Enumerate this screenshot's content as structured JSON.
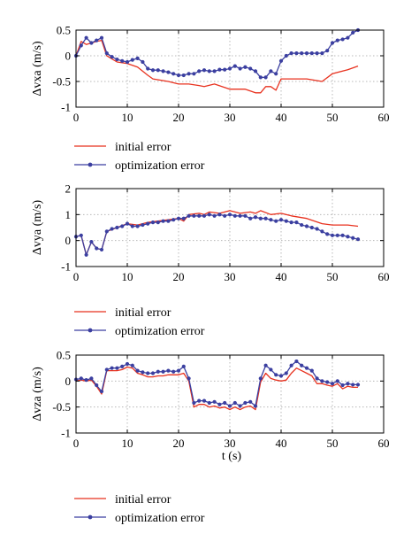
{
  "colors": {
    "initial": "#e8321f",
    "optimization": "#3b3fa0",
    "grid": "#b8b8b8",
    "axis": "#000000"
  },
  "chart_data": [
    {
      "type": "line",
      "ylabel": "Δvxa (m/s)",
      "xlabel": "",
      "xlim": [
        0,
        60
      ],
      "ylim": [
        -1,
        0.5
      ],
      "xticks": [
        0,
        10,
        20,
        30,
        40,
        50,
        60
      ],
      "yticks": [
        -1,
        -0.5,
        0,
        0.5
      ],
      "ytick_labels": [
        "-1",
        "-0.5",
        "0",
        "0.5"
      ],
      "grid": true,
      "series": [
        {
          "name": "initial error",
          "style": "line",
          "x": [
            0,
            1,
            2,
            3,
            4,
            5,
            6,
            8,
            10,
            12,
            14,
            15,
            18,
            20,
            22,
            24,
            25,
            27,
            30,
            33,
            35,
            36,
            37,
            38,
            39,
            40,
            42,
            45,
            48,
            50,
            53,
            55
          ],
          "y": [
            0,
            0.28,
            0.22,
            0.25,
            0.28,
            0.3,
            0,
            -0.12,
            -0.15,
            -0.22,
            -0.38,
            -0.45,
            -0.5,
            -0.55,
            -0.55,
            -0.58,
            -0.6,
            -0.55,
            -0.65,
            -0.65,
            -0.72,
            -0.72,
            -0.6,
            -0.6,
            -0.67,
            -0.45,
            -0.45,
            -0.45,
            -0.5,
            -0.35,
            -0.27,
            -0.2
          ]
        },
        {
          "name": "optimization error",
          "style": "line-marker",
          "x": [
            0,
            1,
            2,
            3,
            4,
            5,
            6,
            7,
            8,
            9,
            10,
            11,
            12,
            13,
            14,
            15,
            16,
            17,
            18,
            19,
            20,
            21,
            22,
            23,
            24,
            25,
            26,
            27,
            28,
            29,
            30,
            31,
            32,
            33,
            34,
            35,
            36,
            37,
            38,
            39,
            40,
            41,
            42,
            43,
            44,
            45,
            46,
            47,
            48,
            49,
            50,
            51,
            52,
            53,
            54,
            55
          ],
          "y": [
            0,
            0.2,
            0.35,
            0.25,
            0.3,
            0.35,
            0.05,
            -0.02,
            -0.07,
            -0.1,
            -0.12,
            -0.08,
            -0.05,
            -0.12,
            -0.25,
            -0.28,
            -0.28,
            -0.3,
            -0.32,
            -0.35,
            -0.38,
            -0.38,
            -0.35,
            -0.35,
            -0.3,
            -0.28,
            -0.3,
            -0.3,
            -0.27,
            -0.27,
            -0.25,
            -0.2,
            -0.25,
            -0.22,
            -0.25,
            -0.3,
            -0.42,
            -0.42,
            -0.3,
            -0.35,
            -0.1,
            0,
            0.05,
            0.05,
            0.05,
            0.05,
            0.05,
            0.05,
            0.05,
            0.1,
            0.25,
            0.3,
            0.32,
            0.35,
            0.45,
            0.5
          ]
        }
      ]
    },
    {
      "type": "line",
      "ylabel": "Δvya (m/s)",
      "xlabel": "",
      "xlim": [
        0,
        60
      ],
      "ylim": [
        -1,
        2
      ],
      "xticks": [
        0,
        10,
        20,
        30,
        40,
        50,
        60
      ],
      "yticks": [
        -1,
        0,
        1,
        2
      ],
      "ytick_labels": [
        "-1",
        "0",
        "1",
        "2"
      ],
      "grid": true,
      "series": [
        {
          "name": "initial error",
          "style": "line",
          "x": [
            0,
            1,
            2,
            3,
            4,
            5,
            6,
            8,
            10,
            12,
            14,
            16,
            18,
            20,
            21,
            22,
            24,
            25,
            26,
            28,
            30,
            32,
            34,
            35,
            36,
            38,
            40,
            42,
            45,
            48,
            50,
            53,
            55
          ],
          "y": [
            0.15,
            0.2,
            -0.55,
            -0.05,
            -0.3,
            -0.35,
            0.35,
            0.5,
            0.65,
            0.6,
            0.7,
            0.75,
            0.8,
            0.85,
            0.75,
            1.0,
            1.05,
            1.0,
            1.1,
            1.05,
            1.15,
            1.05,
            1.1,
            1.05,
            1.15,
            1.0,
            1.05,
            0.95,
            0.85,
            0.65,
            0.6,
            0.6,
            0.55
          ]
        },
        {
          "name": "optimization error",
          "style": "line-marker",
          "x": [
            0,
            1,
            2,
            3,
            4,
            5,
            6,
            7,
            8,
            9,
            10,
            11,
            12,
            13,
            14,
            15,
            16,
            17,
            18,
            19,
            20,
            21,
            22,
            23,
            24,
            25,
            26,
            27,
            28,
            29,
            30,
            31,
            32,
            33,
            34,
            35,
            36,
            37,
            38,
            39,
            40,
            41,
            42,
            43,
            44,
            45,
            46,
            47,
            48,
            49,
            50,
            51,
            52,
            53,
            54,
            55
          ],
          "y": [
            0.15,
            0.2,
            -0.55,
            -0.05,
            -0.3,
            -0.35,
            0.35,
            0.45,
            0.5,
            0.55,
            0.65,
            0.55,
            0.55,
            0.6,
            0.65,
            0.7,
            0.7,
            0.75,
            0.75,
            0.8,
            0.85,
            0.85,
            0.95,
            0.95,
            0.95,
            0.95,
            1.0,
            0.95,
            1.0,
            0.95,
            1.0,
            0.95,
            0.95,
            0.95,
            0.85,
            0.9,
            0.85,
            0.85,
            0.8,
            0.75,
            0.8,
            0.75,
            0.7,
            0.7,
            0.6,
            0.55,
            0.5,
            0.45,
            0.35,
            0.25,
            0.2,
            0.2,
            0.2,
            0.15,
            0.1,
            0.05
          ]
        }
      ]
    },
    {
      "type": "line",
      "ylabel": "Δvza (m/s)",
      "xlabel": "t (s)",
      "xlim": [
        0,
        60
      ],
      "ylim": [
        -1,
        0.5
      ],
      "xticks": [
        0,
        10,
        20,
        30,
        40,
        50,
        60
      ],
      "yticks": [
        -1,
        -0.5,
        0,
        0.5
      ],
      "ytick_labels": [
        "-1",
        "-0.5",
        "0",
        "0.5"
      ],
      "grid": true,
      "series": [
        {
          "name": "initial error",
          "style": "line",
          "x": [
            0,
            1,
            2,
            3,
            4,
            5,
            6,
            7,
            8,
            9,
            10,
            11,
            12,
            13,
            14,
            15,
            16,
            17,
            18,
            19,
            20,
            21,
            22,
            23,
            24,
            25,
            26,
            27,
            28,
            29,
            30,
            31,
            32,
            33,
            34,
            35,
            36,
            37,
            38,
            39,
            40,
            41,
            42,
            43,
            44,
            45,
            46,
            47,
            48,
            49,
            50,
            51,
            52,
            53,
            54,
            55
          ],
          "y": [
            0.0,
            0.02,
            0.0,
            0.02,
            -0.1,
            -0.25,
            0.2,
            0.2,
            0.2,
            0.22,
            0.27,
            0.25,
            0.15,
            0.12,
            0.08,
            0.08,
            0.1,
            0.1,
            0.12,
            0.12,
            0.12,
            0.15,
            0.0,
            -0.5,
            -0.45,
            -0.45,
            -0.5,
            -0.48,
            -0.52,
            -0.5,
            -0.55,
            -0.5,
            -0.55,
            -0.5,
            -0.48,
            -0.55,
            -0.02,
            0.15,
            0.05,
            0.02,
            0.0,
            0.02,
            0.15,
            0.25,
            0.2,
            0.15,
            0.1,
            -0.05,
            -0.05,
            -0.08,
            -0.1,
            -0.05,
            -0.15,
            -0.1,
            -0.12,
            -0.12
          ]
        },
        {
          "name": "optimization error",
          "style": "line-marker",
          "x": [
            0,
            1,
            2,
            3,
            4,
            5,
            6,
            7,
            8,
            9,
            10,
            11,
            12,
            13,
            14,
            15,
            16,
            17,
            18,
            19,
            20,
            21,
            22,
            23,
            24,
            25,
            26,
            27,
            28,
            29,
            30,
            31,
            32,
            33,
            34,
            35,
            36,
            37,
            38,
            39,
            40,
            41,
            42,
            43,
            44,
            45,
            46,
            47,
            48,
            49,
            50,
            51,
            52,
            53,
            54,
            55
          ],
          "y": [
            0.03,
            0.05,
            0.02,
            0.05,
            -0.08,
            -0.2,
            0.22,
            0.25,
            0.25,
            0.28,
            0.33,
            0.3,
            0.2,
            0.17,
            0.15,
            0.15,
            0.18,
            0.18,
            0.2,
            0.18,
            0.2,
            0.28,
            0.05,
            -0.42,
            -0.38,
            -0.38,
            -0.42,
            -0.4,
            -0.45,
            -0.42,
            -0.48,
            -0.42,
            -0.48,
            -0.42,
            -0.4,
            -0.48,
            0.05,
            0.3,
            0.22,
            0.12,
            0.1,
            0.15,
            0.3,
            0.38,
            0.3,
            0.25,
            0.2,
            0.05,
            0.0,
            -0.02,
            -0.05,
            0.0,
            -0.08,
            -0.05,
            -0.07,
            -0.07
          ]
        }
      ]
    }
  ]
}
